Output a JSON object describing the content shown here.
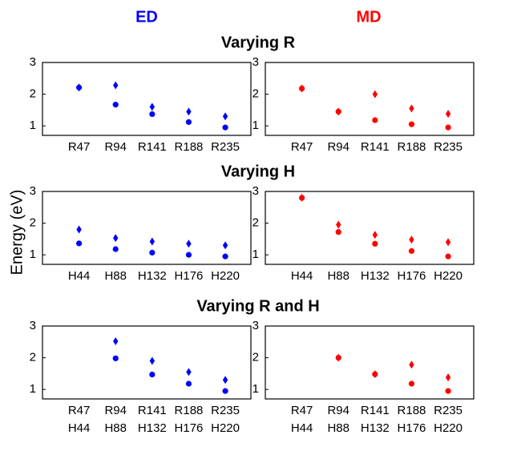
{
  "column_titles": [
    {
      "text": "ED",
      "color": "#0000ff"
    },
    {
      "text": "MD",
      "color": "#ff0000"
    }
  ],
  "row_titles": [
    "Varying R",
    "Varying H",
    "Varying R and H"
  ],
  "ylabel": "Energy (eV)",
  "chart_data": [
    {
      "type": "scatter",
      "categories": [
        "R47",
        "R94",
        "R141",
        "R188",
        "R235"
      ],
      "ylim": [
        0.7,
        3
      ],
      "yticks": [
        1,
        2,
        3
      ],
      "series": [
        {
          "color": "#0000ff",
          "marker": "circle",
          "values": [
            2.21,
            1.67,
            1.37,
            1.12,
            0.95
          ]
        },
        {
          "color": "#0000ff",
          "marker": "diamond",
          "values": [
            2.21,
            2.28,
            1.6,
            1.45,
            1.3
          ]
        }
      ]
    },
    {
      "type": "scatter",
      "categories": [
        "R47",
        "R94",
        "R141",
        "R188",
        "R235"
      ],
      "ylim": [
        0.7,
        3
      ],
      "yticks": [
        1,
        2,
        3
      ],
      "series": [
        {
          "color": "#ff0000",
          "marker": "circle",
          "values": [
            2.18,
            1.45,
            1.18,
            1.05,
            0.95
          ]
        },
        {
          "color": "#ff0000",
          "marker": "diamond",
          "values": [
            2.18,
            1.45,
            2.0,
            1.55,
            1.38
          ]
        }
      ]
    },
    {
      "type": "scatter",
      "categories": [
        "H44",
        "H88",
        "H132",
        "H176",
        "H220"
      ],
      "ylim": [
        0.7,
        3
      ],
      "yticks": [
        1,
        2,
        3
      ],
      "series": [
        {
          "color": "#0000ff",
          "marker": "circle",
          "values": [
            1.36,
            1.18,
            1.07,
            1.0,
            0.95
          ]
        },
        {
          "color": "#0000ff",
          "marker": "diamond",
          "values": [
            1.8,
            1.53,
            1.42,
            1.35,
            1.3
          ]
        }
      ]
    },
    {
      "type": "scatter",
      "categories": [
        "H44",
        "H88",
        "H132",
        "H176",
        "H220"
      ],
      "ylim": [
        0.7,
        3
      ],
      "yticks": [
        1,
        2,
        3
      ],
      "series": [
        {
          "color": "#ff0000",
          "marker": "circle",
          "values": [
            2.8,
            1.72,
            1.35,
            1.12,
            0.95
          ]
        },
        {
          "color": "#ff0000",
          "marker": "diamond",
          "values": [
            2.8,
            1.95,
            1.63,
            1.48,
            1.4
          ]
        }
      ]
    },
    {
      "type": "scatter",
      "categories": [
        [
          "R47",
          "H44"
        ],
        [
          "R94",
          "H88"
        ],
        [
          "R141",
          "H132"
        ],
        [
          "R188",
          "H176"
        ],
        [
          "R235",
          "H220"
        ]
      ],
      "ylim": [
        0.7,
        3
      ],
      "yticks": [
        1,
        2,
        3
      ],
      "series": [
        {
          "color": "#0000ff",
          "marker": "circle",
          "values": [
            null,
            1.98,
            1.47,
            1.18,
            0.95
          ]
        },
        {
          "color": "#0000ff",
          "marker": "diamond",
          "values": [
            null,
            2.52,
            1.9,
            1.55,
            1.3
          ]
        }
      ]
    },
    {
      "type": "scatter",
      "categories": [
        [
          "R47",
          "H44"
        ],
        [
          "R94",
          "H88"
        ],
        [
          "R141",
          "H132"
        ],
        [
          "R188",
          "H176"
        ],
        [
          "R235",
          "H220"
        ]
      ],
      "ylim": [
        0.7,
        3
      ],
      "yticks": [
        1,
        2,
        3
      ],
      "series": [
        {
          "color": "#ff0000",
          "marker": "circle",
          "values": [
            null,
            2.0,
            1.48,
            1.18,
            0.95
          ]
        },
        {
          "color": "#ff0000",
          "marker": "diamond",
          "values": [
            null,
            2.0,
            1.48,
            1.78,
            1.38
          ]
        }
      ]
    }
  ]
}
